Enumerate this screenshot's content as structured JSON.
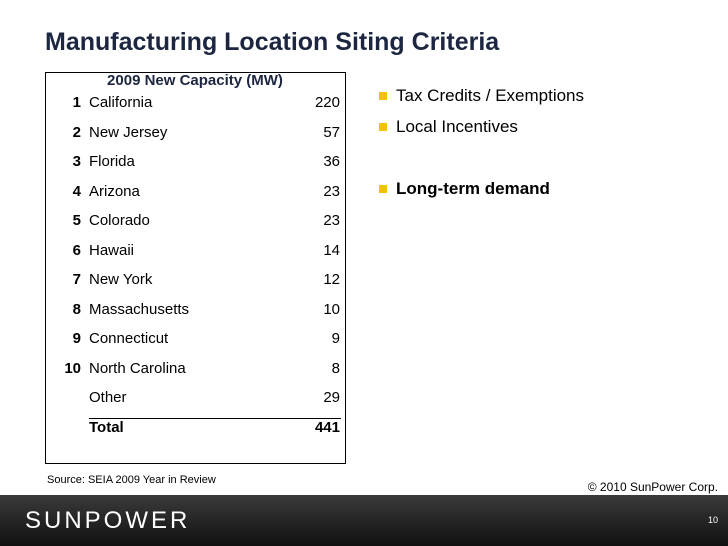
{
  "header": {
    "title": "Manufacturing Location Siting Criteria"
  },
  "table": {
    "title": "2009 New Capacity (MW)",
    "rows": [
      {
        "rank": 1,
        "name": "California",
        "value": 220
      },
      {
        "rank": 2,
        "name": "New Jersey",
        "value": 57
      },
      {
        "rank": 3,
        "name": "Florida",
        "value": 36
      },
      {
        "rank": 4,
        "name": "Arizona",
        "value": 23
      },
      {
        "rank": 5,
        "name": "Colorado",
        "value": 23
      },
      {
        "rank": 6,
        "name": "Hawaii",
        "value": 14
      },
      {
        "rank": 7,
        "name": "New York",
        "value": 12
      },
      {
        "rank": 8,
        "name": "Massachusetts",
        "value": 10
      },
      {
        "rank": 9,
        "name": "Connecticut",
        "value": 9
      },
      {
        "rank": 10,
        "name": "North Carolina",
        "value": 8
      },
      {
        "name": "Other",
        "value": 29
      }
    ],
    "total": {
      "name": "Total",
      "value": 441
    }
  },
  "bullets": [
    {
      "text": "Tax Credits / Exemptions",
      "y": 0
    },
    {
      "text": "Local Incentives",
      "y": 1
    },
    {
      "text": "Long-term demand",
      "y": 3,
      "bold": true
    }
  ],
  "source": "Source: SEIA 2009 Year in Review",
  "copyright": "© 2010 SunPower Corp.",
  "footer": {
    "logo": "SUNPOWER",
    "page": "10"
  }
}
